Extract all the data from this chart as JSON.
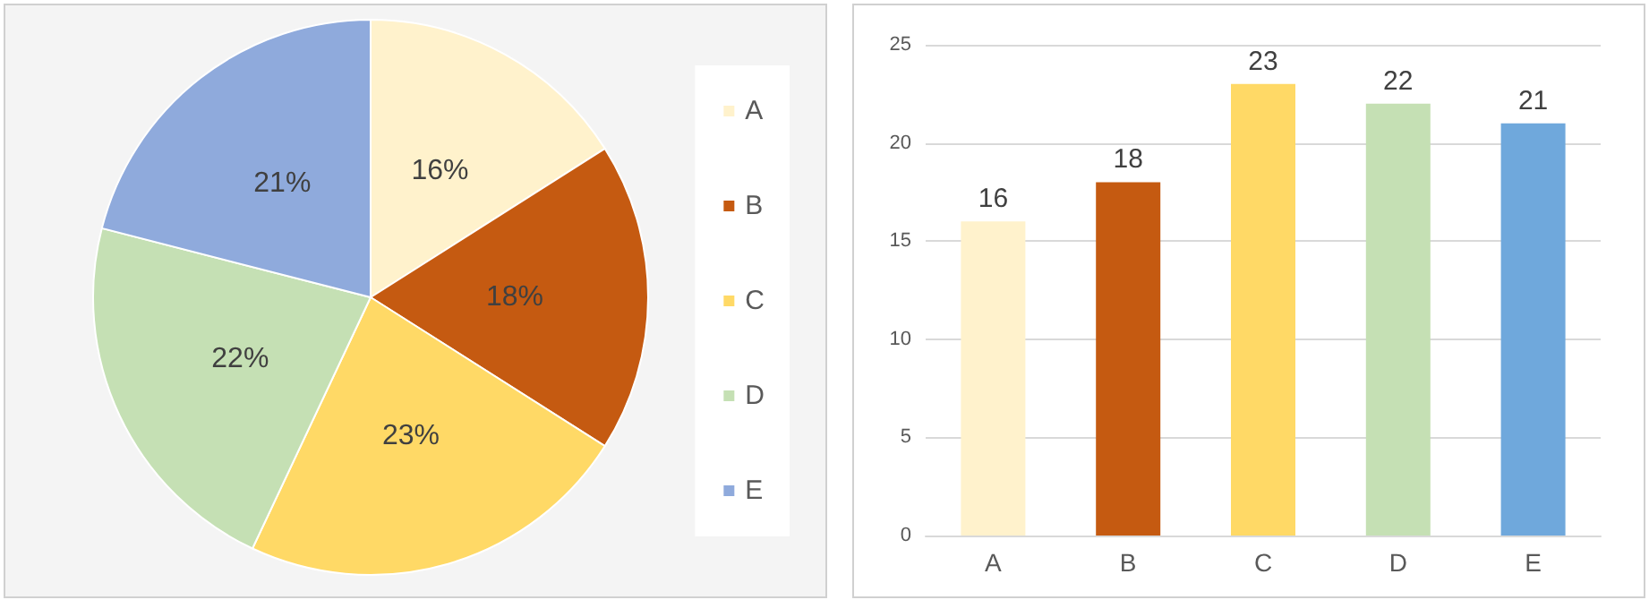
{
  "chart_data": [
    {
      "type": "pie",
      "categories": [
        "A",
        "B",
        "C",
        "D",
        "E"
      ],
      "values": [
        16,
        18,
        23,
        22,
        21
      ],
      "colors": [
        "#fff2cc",
        "#c55a11",
        "#ffd966",
        "#c5e0b4",
        "#8faadc"
      ],
      "value_labels": [
        "16%",
        "18%",
        "23%",
        "22%",
        "21%"
      ],
      "legend": "right"
    },
    {
      "type": "bar",
      "categories": [
        "A",
        "B",
        "C",
        "D",
        "E"
      ],
      "values": [
        16,
        18,
        23,
        22,
        21
      ],
      "colors": [
        "#fff2cc",
        "#c55a11",
        "#ffd966",
        "#c5e0b4",
        "#6fa8dc"
      ],
      "ylim": [
        0,
        25
      ],
      "yticks": [
        0,
        5,
        10,
        15,
        20,
        25
      ],
      "grid": "y",
      "data_labels": true,
      "legend": false
    }
  ]
}
